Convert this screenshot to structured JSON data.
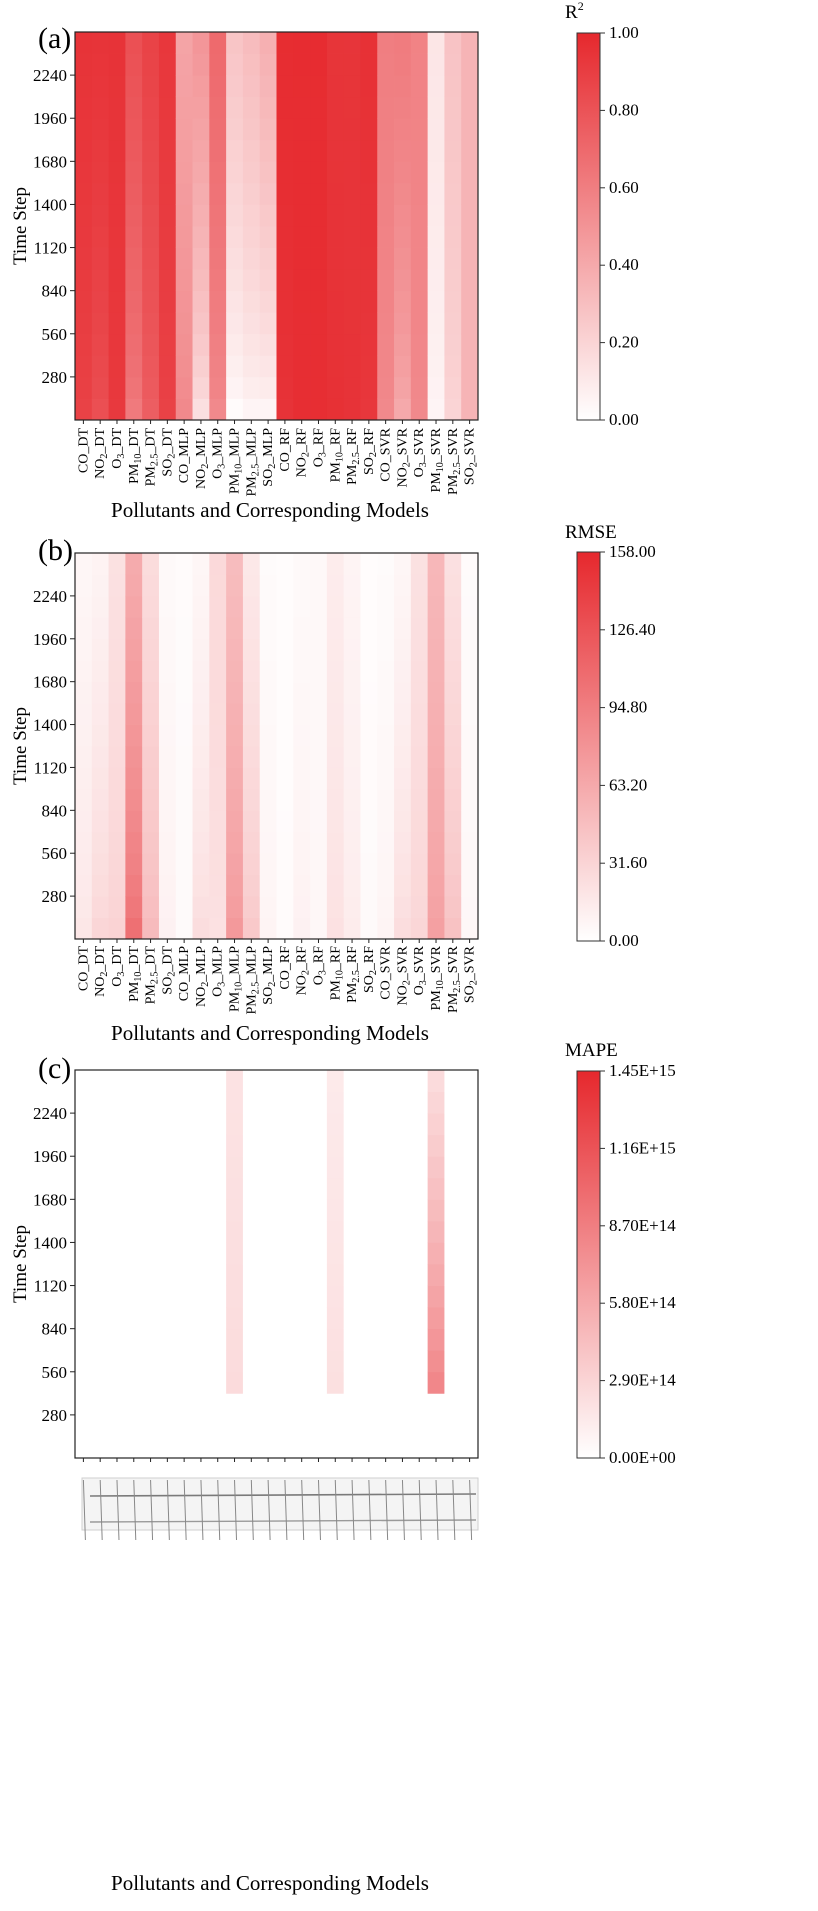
{
  "chart_data": [
    {
      "panel": "(a)",
      "type": "heatmap",
      "metric": "R2",
      "colorbar": {
        "title": "R",
        "title_sup": "2",
        "min": 0.0,
        "max": 1.0,
        "ticks": [
          "1.00",
          "0.80",
          "0.60",
          "0.40",
          "0.20",
          "0.00"
        ]
      },
      "xlabel": "Pollutants and Corresponding Models",
      "ylabel": "Time Step",
      "yticks": [
        280,
        560,
        840,
        1120,
        1400,
        1680,
        1960,
        2240
      ],
      "ylim": [
        0,
        2520
      ],
      "categories": [
        {
          "p": "CO",
          "s": "",
          "m": "DT"
        },
        {
          "p": "NO",
          "s": "2",
          "m": "DT"
        },
        {
          "p": "O",
          "s": "3",
          "m": "DT"
        },
        {
          "p": "PM",
          "s": "10",
          "m": "DT"
        },
        {
          "p": "PM",
          "s": "2.5",
          "m": "DT"
        },
        {
          "p": "SO",
          "s": "2",
          "m": "DT"
        },
        {
          "p": "CO",
          "s": "",
          "m": "MLP"
        },
        {
          "p": "NO",
          "s": "2",
          "m": "MLP"
        },
        {
          "p": "O",
          "s": "3",
          "m": "MLP"
        },
        {
          "p": "PM",
          "s": "10",
          "m": "MLP"
        },
        {
          "p": "PM",
          "s": "2.5",
          "m": "MLP"
        },
        {
          "p": "SO",
          "s": "2",
          "m": "MLP"
        },
        {
          "p": "CO",
          "s": "",
          "m": "RF"
        },
        {
          "p": "NO",
          "s": "2",
          "m": "RF"
        },
        {
          "p": "O",
          "s": "3",
          "m": "RF"
        },
        {
          "p": "PM",
          "s": "10",
          "m": "RF"
        },
        {
          "p": "PM",
          "s": "2.5",
          "m": "RF"
        },
        {
          "p": "SO",
          "s": "2",
          "m": "RF"
        },
        {
          "p": "CO",
          "s": "",
          "m": "SVR"
        },
        {
          "p": "NO",
          "s": "2",
          "m": "SVR"
        },
        {
          "p": "O",
          "s": "3",
          "m": "SVR"
        },
        {
          "p": "PM",
          "s": "10",
          "m": "SVR"
        },
        {
          "p": "PM",
          "s": "2.5",
          "m": "SVR"
        },
        {
          "p": "SO",
          "s": "2",
          "m": "SVR"
        }
      ],
      "series_start": [
        0,
        0,
        0,
        0,
        0,
        0,
        0,
        0,
        0,
        0,
        0,
        0,
        0,
        0,
        0,
        0,
        0,
        0,
        0,
        0,
        0,
        0,
        0,
        0
      ],
      "series_early": [
        0.88,
        0.82,
        0.92,
        0.62,
        0.75,
        0.88,
        0.55,
        0.15,
        0.55,
        0.02,
        0.05,
        0.05,
        0.95,
        0.97,
        0.97,
        0.96,
        0.95,
        0.93,
        0.55,
        0.4,
        0.55,
        0.05,
        0.2,
        0.35
      ],
      "series_late": [
        0.95,
        0.95,
        0.95,
        0.82,
        0.88,
        0.93,
        0.42,
        0.5,
        0.7,
        0.28,
        0.32,
        0.38,
        0.98,
        0.98,
        0.98,
        0.94,
        0.94,
        0.96,
        0.6,
        0.62,
        0.58,
        0.12,
        0.28,
        0.35
      ]
    },
    {
      "panel": "(b)",
      "type": "heatmap",
      "metric": "RMSE",
      "colorbar": {
        "title": "RMSE",
        "min": 0.0,
        "max": 158.0,
        "ticks": [
          "158.00",
          "126.40",
          "94.80",
          "63.20",
          "31.60",
          "0.00"
        ]
      },
      "xlabel": "Pollutants and Corresponding Models",
      "ylabel": "Time Step",
      "yticks": [
        280,
        560,
        840,
        1120,
        1400,
        1680,
        1960,
        2240
      ],
      "ylim": [
        0,
        2520
      ],
      "series_start": [
        0,
        0,
        0,
        0,
        0,
        0,
        0,
        0,
        0,
        0,
        0,
        0,
        0,
        0,
        0,
        0,
        0,
        0,
        0,
        0,
        0,
        0,
        0,
        0
      ],
      "series_early": [
        18,
        30,
        32,
        105,
        50,
        10,
        4,
        25,
        22,
        75,
        40,
        8,
        3,
        10,
        6,
        22,
        14,
        4,
        8,
        25,
        30,
        70,
        45,
        6
      ],
      "series_late": [
        6,
        8,
        22,
        60,
        25,
        4,
        3,
        6,
        28,
        48,
        16,
        3,
        2,
        4,
        5,
        14,
        8,
        2,
        3,
        6,
        22,
        52,
        22,
        3
      ]
    },
    {
      "panel": "(c)",
      "type": "heatmap",
      "metric": "MAPE",
      "colorbar": {
        "title": "MAPE",
        "min": 0.0,
        "max": 1450000000000000.0,
        "ticks": [
          "1.45E+15",
          "1.16E+15",
          "8.70E+14",
          "5.80E+14",
          "2.90E+14",
          "0.00E+00"
        ]
      },
      "xlabel": "Pollutants and Corresponding Models",
      "ylabel": "Time Step",
      "yticks": [
        280,
        560,
        840,
        1120,
        1400,
        1680,
        1960,
        2240
      ],
      "ylim": [
        0,
        2520
      ],
      "series_start": [
        0,
        0,
        0,
        0,
        0,
        0,
        0,
        0,
        0,
        0,
        0,
        0,
        0,
        0,
        0,
        0,
        0,
        0,
        0,
        0,
        0,
        0,
        0,
        0
      ],
      "series_early": [
        0.005,
        0.005,
        0.005,
        0.005,
        0.005,
        0.005,
        0.005,
        0.005,
        0.005,
        260000000000000.0,
        0.005,
        0.005,
        0.005,
        0.005,
        0.005,
        240000000000000.0,
        0.005,
        0.005,
        0.005,
        0.005,
        0.005,
        1050000000000000.0,
        0.005,
        0.005
      ],
      "series_late": [
        0.005,
        0.005,
        0.005,
        0.005,
        0.005,
        0.005,
        0.005,
        0.005,
        0.005,
        190000000000000.0,
        0.005,
        0.005,
        0.005,
        0.005,
        0.005,
        140000000000000.0,
        0.005,
        0.005,
        0.005,
        0.005,
        0.005,
        210000000000000.0,
        0.005,
        0.005
      ],
      "xtick_labels": "illegible"
    }
  ]
}
